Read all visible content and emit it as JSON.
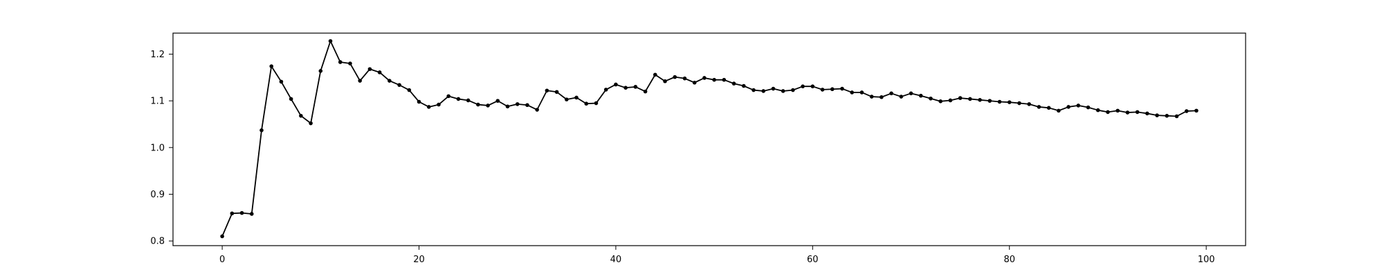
{
  "chart_data": {
    "type": "line",
    "title": "",
    "xlabel": "",
    "ylabel": "",
    "xlim": [
      -5,
      104
    ],
    "ylim": [
      0.79,
      1.245
    ],
    "grid": false,
    "line_color": "#000000",
    "marker_color": "#000000",
    "xticks": [
      0,
      20,
      40,
      60,
      80,
      100
    ],
    "xtick_labels": [
      "0",
      "20",
      "40",
      "60",
      "80",
      "100"
    ],
    "yticks": [
      0.8,
      0.9,
      1.0,
      1.1,
      1.2
    ],
    "ytick_labels": [
      "0.8",
      "0.9",
      "1.0",
      "1.1",
      "1.2"
    ],
    "x": [
      0,
      1,
      2,
      3,
      4,
      5,
      6,
      7,
      8,
      9,
      10,
      11,
      12,
      13,
      14,
      15,
      16,
      17,
      18,
      19,
      20,
      21,
      22,
      23,
      24,
      25,
      26,
      27,
      28,
      29,
      30,
      31,
      32,
      33,
      34,
      35,
      36,
      37,
      38,
      39,
      40,
      41,
      42,
      43,
      44,
      45,
      46,
      47,
      48,
      49,
      50,
      51,
      52,
      53,
      54,
      55,
      56,
      57,
      58,
      59,
      60,
      61,
      62,
      63,
      64,
      65,
      66,
      67,
      68,
      69,
      70,
      71,
      72,
      73,
      74,
      75,
      76,
      77,
      78,
      79,
      80,
      81,
      82,
      83,
      84,
      85,
      86,
      87,
      88,
      89,
      90,
      91,
      92,
      93,
      94,
      95,
      96,
      97,
      98,
      99
    ],
    "values": [
      0.81,
      0.859,
      0.86,
      0.858,
      1.037,
      1.174,
      1.141,
      1.104,
      1.068,
      1.052,
      1.164,
      1.228,
      1.183,
      1.18,
      1.143,
      1.168,
      1.161,
      1.143,
      1.134,
      1.123,
      1.098,
      1.087,
      1.092,
      1.11,
      1.104,
      1.101,
      1.092,
      1.09,
      1.1,
      1.088,
      1.093,
      1.091,
      1.081,
      1.122,
      1.119,
      1.103,
      1.107,
      1.094,
      1.095,
      1.124,
      1.135,
      1.128,
      1.13,
      1.12,
      1.156,
      1.142,
      1.151,
      1.148,
      1.139,
      1.149,
      1.145,
      1.145,
      1.137,
      1.132,
      1.123,
      1.121,
      1.126,
      1.121,
      1.123,
      1.131,
      1.131,
      1.124,
      1.125,
      1.126,
      1.118,
      1.118,
      1.109,
      1.108,
      1.116,
      1.109,
      1.116,
      1.111,
      1.105,
      1.099,
      1.101,
      1.106,
      1.104,
      1.102,
      1.1,
      1.098,
      1.097,
      1.095,
      1.093,
      1.087,
      1.085,
      1.079,
      1.087,
      1.09,
      1.086,
      1.08,
      1.076,
      1.079,
      1.075,
      1.076,
      1.073,
      1.069,
      1.068,
      1.067,
      1.078,
      1.079
    ]
  }
}
